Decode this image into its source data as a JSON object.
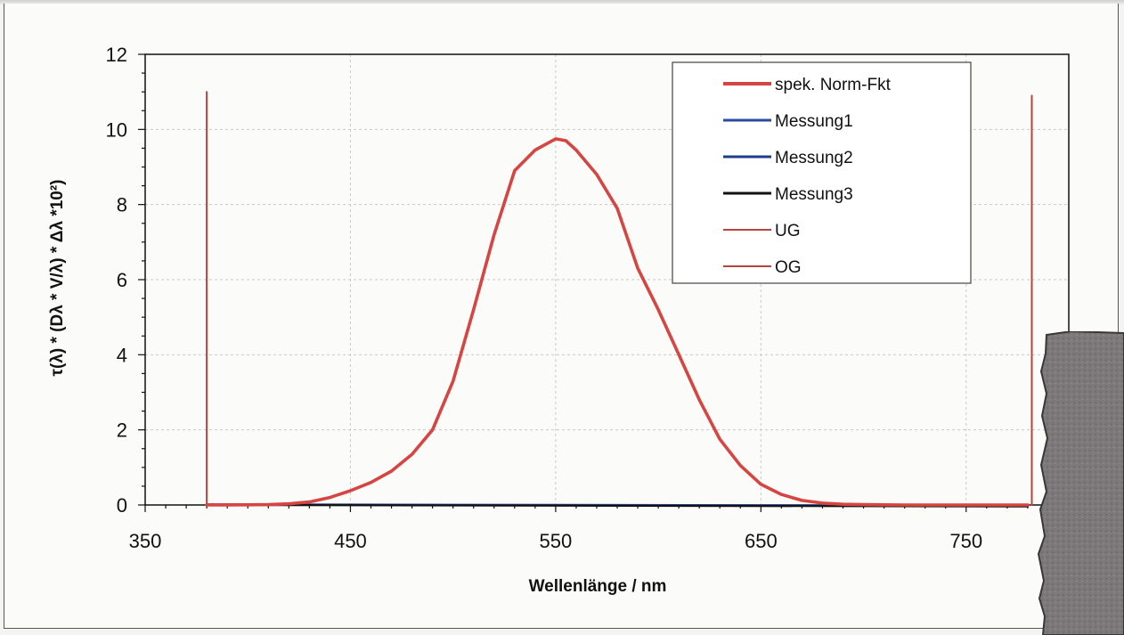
{
  "chart_data": {
    "type": "line",
    "title": "",
    "xlabel": "Wellenlänge / nm",
    "ylabel": "τ(λ) * (Dλ * V/λ) * Δλ *10²)",
    "xlim": [
      350,
      800
    ],
    "ylim": [
      0,
      12
    ],
    "x_ticks": [
      "350",
      "450",
      "550",
      "650",
      "750"
    ],
    "y_ticks": [
      "0",
      "2",
      "4",
      "6",
      "8",
      "10",
      "12"
    ],
    "grid": true,
    "legend_position": "top-right",
    "series": [
      {
        "name": "spek. Norm-Fkt",
        "color": "#d64541",
        "x": [
          380,
          400,
          410,
          420,
          430,
          440,
          450,
          460,
          470,
          480,
          490,
          500,
          510,
          520,
          530,
          540,
          550,
          555,
          560,
          570,
          580,
          590,
          600,
          610,
          620,
          630,
          640,
          650,
          660,
          670,
          680,
          690,
          700,
          710,
          720,
          730,
          740,
          750,
          760,
          770,
          780
        ],
        "y": [
          0,
          0.005,
          0.01,
          0.03,
          0.08,
          0.2,
          0.38,
          0.6,
          0.9,
          1.35,
          2.0,
          3.3,
          5.2,
          7.2,
          8.9,
          9.45,
          9.75,
          9.7,
          9.45,
          8.8,
          7.9,
          6.3,
          5.2,
          4.0,
          2.8,
          1.75,
          1.05,
          0.55,
          0.28,
          0.12,
          0.05,
          0.02,
          0.01,
          0.005,
          0,
          0,
          0,
          0,
          0,
          0,
          0
        ]
      },
      {
        "name": "Messung1",
        "color": "#2c4a9e",
        "x": [
          380,
          780
        ],
        "y": [
          0.02,
          -0.02
        ]
      },
      {
        "name": "Messung2",
        "color": "#1f3c8a",
        "x": [
          380,
          780
        ],
        "y": [
          0.01,
          -0.03
        ]
      },
      {
        "name": "Messung3",
        "color": "#111111",
        "x": [
          380,
          780
        ],
        "y": [
          0.0,
          -0.04
        ]
      },
      {
        "name": "UG",
        "color": "#b5463f",
        "x": [
          380,
          380
        ],
        "y": [
          0,
          11
        ]
      },
      {
        "name": "OG",
        "color": "#b5463f",
        "x": [
          782,
          782
        ],
        "y": [
          0,
          10.9
        ]
      }
    ]
  }
}
